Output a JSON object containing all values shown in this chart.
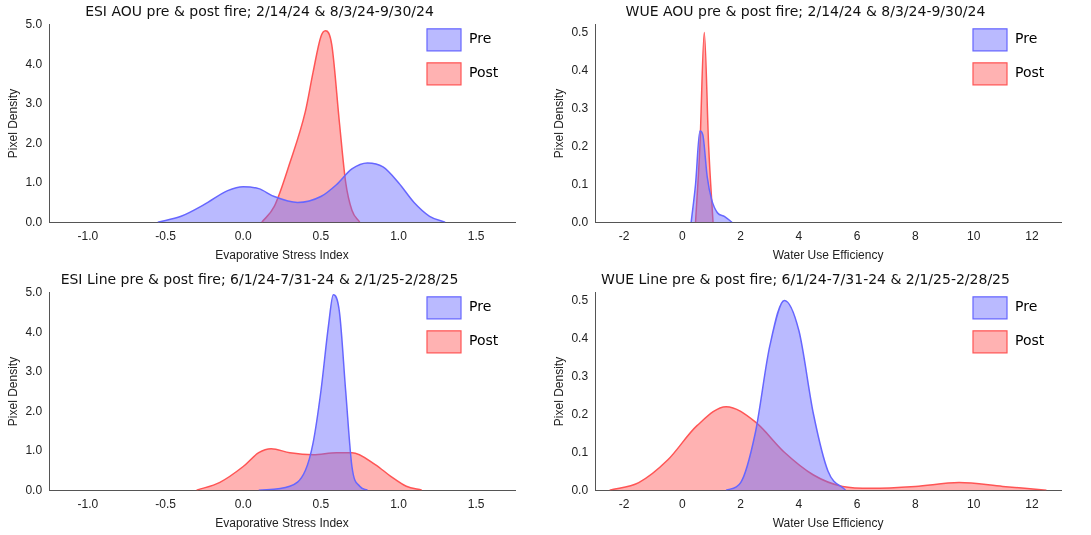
{
  "chart_data": [
    {
      "type": "area",
      "title": "ESI AOU pre & post fire; 2/14/24 & 8/3/24-9/30/24",
      "xlabel": "Evaporative Stress Index",
      "ylabel": "Pixel Density",
      "legend": "top right",
      "grid": false,
      "xlim": [
        -1.25,
        1.75
      ],
      "xticks": [
        {
          "value": -1,
          "label": "-1.0"
        },
        {
          "value": -0.5,
          "label": "-0.5"
        },
        {
          "value": 0,
          "label": "0.0"
        },
        {
          "value": 0.5,
          "label": "0.5"
        },
        {
          "value": 1,
          "label": "1.0"
        },
        {
          "value": 1.5,
          "label": "1.5"
        }
      ],
      "ylim": [
        0,
        5
      ],
      "yticks": [
        {
          "value": 0,
          "label": "0.0"
        },
        {
          "value": 1,
          "label": "1.0"
        },
        {
          "value": 2,
          "label": "2.0"
        },
        {
          "value": 3,
          "label": "3.0"
        },
        {
          "value": 4,
          "label": "4.0"
        },
        {
          "value": 5,
          "label": "5.0"
        }
      ],
      "series": [
        {
          "name": "Pre",
          "color": "#6666ff",
          "x": [
            -0.55,
            -0.4,
            -0.25,
            -0.1,
            0.0,
            0.1,
            0.2,
            0.35,
            0.5,
            0.6,
            0.7,
            0.8,
            0.9,
            1.0,
            1.1,
            1.2,
            1.3
          ],
          "values": [
            0,
            0.15,
            0.45,
            0.8,
            0.9,
            0.85,
            0.65,
            0.5,
            0.65,
            0.95,
            1.35,
            1.5,
            1.4,
            1.0,
            0.5,
            0.15,
            0
          ]
        },
        {
          "name": "Post",
          "color": "#ff5555",
          "x": [
            0.12,
            0.2,
            0.3,
            0.4,
            0.45,
            0.5,
            0.53,
            0.57,
            0.62,
            0.66,
            0.7,
            0.75
          ],
          "values": [
            0,
            0.4,
            1.5,
            2.8,
            3.8,
            4.7,
            4.85,
            4.5,
            2.5,
            1.0,
            0.3,
            0
          ]
        }
      ]
    },
    {
      "type": "area",
      "title": "WUE AOU pre & post fire; 2/14/24 & 8/3/24-9/30/24",
      "xlabel": "Water Use Efficiency",
      "ylabel": "Pixel Density",
      "legend": "top right",
      "grid": false,
      "xlim": [
        -3,
        13
      ],
      "xticks": [
        -2,
        0,
        2,
        4,
        6,
        8,
        10,
        12
      ],
      "ylim": [
        0,
        0.52
      ],
      "yticks": [
        {
          "value": 0,
          "label": "0.0"
        },
        0.1,
        0.2,
        0.3,
        0.4,
        0.5
      ],
      "series": [
        {
          "name": "Pre",
          "color": "#6666ff",
          "x": [
            0.3,
            0.45,
            0.6,
            0.7,
            0.85,
            1.0,
            1.2,
            1.45,
            1.7
          ],
          "values": [
            0,
            0.1,
            0.24,
            0.23,
            0.12,
            0.06,
            0.025,
            0.015,
            0
          ]
        },
        {
          "name": "Post",
          "color": "#ff5555",
          "x": [
            0.45,
            0.6,
            0.75,
            0.9,
            1.05
          ],
          "values": [
            0,
            0.2,
            0.5,
            0.2,
            0
          ]
        }
      ]
    },
    {
      "type": "area",
      "title": "ESI Line pre & post fire; 6/1/24-7/31-24 & 2/1/25-2/28/25",
      "xlabel": "Evaporative Stress Index",
      "ylabel": "Pixel Density",
      "legend": "top right",
      "grid": false,
      "xlim": [
        -1.25,
        1.75
      ],
      "xticks": [
        {
          "value": -1,
          "label": "-1.0"
        },
        {
          "value": -0.5,
          "label": "-0.5"
        },
        {
          "value": 0,
          "label": "0.0"
        },
        {
          "value": 0.5,
          "label": "0.5"
        },
        {
          "value": 1,
          "label": "1.0"
        },
        {
          "value": 1.5,
          "label": "1.5"
        }
      ],
      "ylim": [
        0,
        5
      ],
      "yticks": [
        {
          "value": 0,
          "label": "0.0"
        },
        {
          "value": 1,
          "label": "1.0"
        },
        {
          "value": 2,
          "label": "2.0"
        },
        {
          "value": 3,
          "label": "3.0"
        },
        {
          "value": 4,
          "label": "4.0"
        },
        {
          "value": 5,
          "label": "5.0"
        }
      ],
      "series": [
        {
          "name": "Pre",
          "color": "#6666ff",
          "x": [
            0.1,
            0.3,
            0.4,
            0.45,
            0.5,
            0.55,
            0.58,
            0.62,
            0.66,
            0.7,
            0.75,
            0.8
          ],
          "values": [
            0,
            0.1,
            0.5,
            1.2,
            2.5,
            4.2,
            4.95,
            4.5,
            2.5,
            0.6,
            0.1,
            0
          ]
        },
        {
          "name": "Post",
          "color": "#ff5555",
          "x": [
            -0.3,
            -0.15,
            0.0,
            0.1,
            0.18,
            0.3,
            0.45,
            0.6,
            0.7,
            0.85,
            0.95,
            1.05,
            1.15
          ],
          "values": [
            0,
            0.2,
            0.6,
            0.95,
            1.05,
            0.95,
            0.9,
            0.95,
            0.95,
            0.65,
            0.35,
            0.1,
            0
          ]
        }
      ]
    },
    {
      "type": "area",
      "title": "WUE Line pre & post fire; 6/1/24-7/31-24 & 2/1/25-2/28/25",
      "xlabel": "Water Use Efficiency",
      "ylabel": "Pixel Density",
      "legend": "top right",
      "grid": false,
      "xlim": [
        -3,
        13
      ],
      "xticks": [
        -2,
        0,
        2,
        4,
        6,
        8,
        10,
        12
      ],
      "ylim": [
        0,
        0.52
      ],
      "yticks": [
        {
          "value": 0,
          "label": "0.0"
        },
        0.1,
        0.2,
        0.3,
        0.4,
        0.5
      ],
      "series": [
        {
          "name": "Pre",
          "color": "#6666ff",
          "x": [
            1.5,
            2.0,
            2.5,
            3.0,
            3.5,
            4.0,
            4.5,
            5.0,
            5.6
          ],
          "values": [
            0,
            0.02,
            0.15,
            0.38,
            0.5,
            0.42,
            0.2,
            0.05,
            0
          ]
        },
        {
          "name": "Post",
          "color": "#ff5555",
          "x": [
            -2.5,
            -1.5,
            -0.5,
            0.5,
            1.5,
            2.5,
            3.5,
            4.5,
            5.5,
            6.5,
            8,
            9.5,
            11,
            12.5
          ],
          "values": [
            0,
            0.02,
            0.08,
            0.17,
            0.22,
            0.18,
            0.1,
            0.04,
            0.01,
            0.005,
            0.01,
            0.02,
            0.01,
            0
          ]
        }
      ]
    }
  ]
}
